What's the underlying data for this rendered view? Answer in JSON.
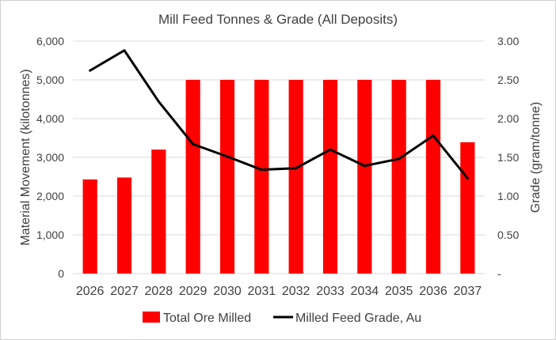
{
  "chart_data": {
    "type": "bar+line",
    "title": "Mill Feed Tonnes & Grade (All Deposits)",
    "categories": [
      "2026",
      "2027",
      "2028",
      "2029",
      "2030",
      "2031",
      "2032",
      "2033",
      "2034",
      "2035",
      "2036",
      "2037"
    ],
    "series": [
      {
        "name": "Total Ore Milled",
        "type": "bar",
        "axis": "left",
        "color": "#ff0000",
        "values": [
          2430,
          2480,
          3200,
          5000,
          5000,
          5000,
          5000,
          5000,
          5000,
          5000,
          5000,
          3390
        ]
      },
      {
        "name": "Milled Feed Grade, Au",
        "type": "line",
        "axis": "right",
        "color": "#000000",
        "values": [
          2.62,
          2.88,
          2.22,
          1.67,
          1.51,
          1.34,
          1.36,
          1.6,
          1.39,
          1.48,
          1.78,
          1.23
        ]
      }
    ],
    "y_left": {
      "label": "Material Movement  (kilotonnes)",
      "min": 0,
      "max": 6000,
      "ticks": [
        0,
        1000,
        2000,
        3000,
        4000,
        5000,
        6000
      ],
      "tick_labels": [
        "0",
        "1,000",
        "2,000",
        "3,000",
        "4,000",
        "5,000",
        "6,000"
      ]
    },
    "y_right": {
      "label": "Grade (gram/tonne)",
      "min": 0,
      "max": 3,
      "ticks": [
        0,
        0.5,
        1,
        1.5,
        2,
        2.5,
        3
      ],
      "tick_labels": [
        "-",
        "0.50",
        "1.00",
        "1.50",
        "2.00",
        "2.50",
        "3.00"
      ]
    },
    "grid": true,
    "legend_position": "bottom"
  }
}
